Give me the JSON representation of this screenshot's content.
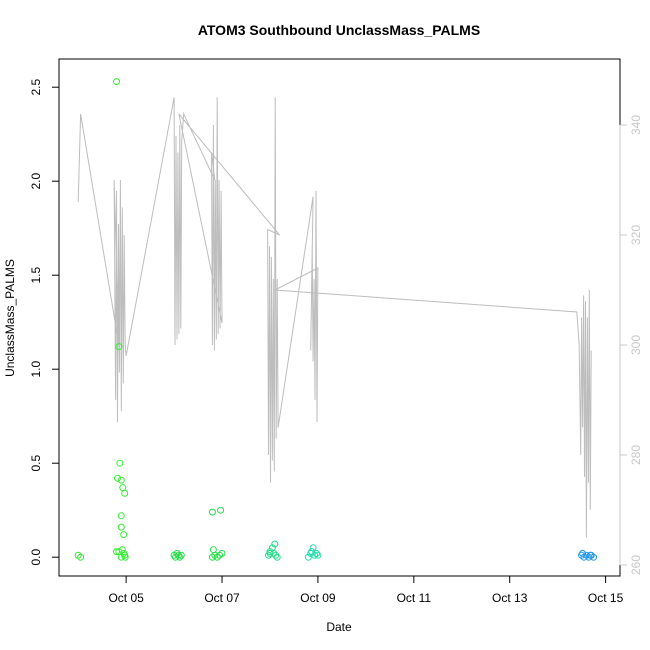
{
  "chart_data": {
    "type": "scatter",
    "title": "ATOM3 Southbound UnclassMass_PALMS",
    "xlabel": "Date",
    "ylabel": "UnclassMass_PALMS",
    "x_ticks": [
      "Oct 05",
      "Oct 07",
      "Oct 09",
      "Oct 11",
      "Oct 13",
      "Oct 15"
    ],
    "x_tick_dates": [
      5,
      7,
      9,
      11,
      13,
      15
    ],
    "xlim": [
      3.6,
      15.3
    ],
    "ylim": [
      -0.1,
      2.65
    ],
    "y_ticks": [
      0.0,
      0.5,
      1.0,
      1.5,
      2.0,
      2.5
    ],
    "y_tick_labels": [
      "0.0",
      "0.5",
      "1.0",
      "1.5",
      "2.0",
      "2.5"
    ],
    "y2lim": [
      258,
      352
    ],
    "y2_ticks": [
      260,
      280,
      300,
      320,
      340
    ],
    "y2_tick_labels": [
      "260",
      "280",
      "300",
      "320",
      "340"
    ],
    "grid": false,
    "points": [
      {
        "x": 4.0,
        "y": 0.01,
        "color": "#33e833"
      },
      {
        "x": 4.05,
        "y": 0.0,
        "color": "#33e833"
      },
      {
        "x": 4.8,
        "y": 2.53,
        "color": "#33ee33"
      },
      {
        "x": 4.85,
        "y": 1.12,
        "color": "#33ee33"
      },
      {
        "x": 4.87,
        "y": 0.5,
        "color": "#33ee33"
      },
      {
        "x": 4.82,
        "y": 0.42,
        "color": "#33ee33"
      },
      {
        "x": 4.9,
        "y": 0.41,
        "color": "#33ee33"
      },
      {
        "x": 4.93,
        "y": 0.37,
        "color": "#33ee33"
      },
      {
        "x": 4.97,
        "y": 0.34,
        "color": "#33ee33"
      },
      {
        "x": 4.9,
        "y": 0.22,
        "color": "#33ee33"
      },
      {
        "x": 4.9,
        "y": 0.16,
        "color": "#33ee33"
      },
      {
        "x": 4.95,
        "y": 0.12,
        "color": "#33ee33"
      },
      {
        "x": 4.8,
        "y": 0.03,
        "color": "#33ee33"
      },
      {
        "x": 4.85,
        "y": 0.03,
        "color": "#33ee33"
      },
      {
        "x": 4.92,
        "y": 0.04,
        "color": "#33ee33"
      },
      {
        "x": 4.95,
        "y": 0.02,
        "color": "#33ee33"
      },
      {
        "x": 4.97,
        "y": 0.01,
        "color": "#33ee33"
      },
      {
        "x": 4.98,
        "y": 0.0,
        "color": "#33ee33"
      },
      {
        "x": 4.9,
        "y": 0.0,
        "color": "#33ee33"
      },
      {
        "x": 6.0,
        "y": 0.01,
        "color": "#22dd44"
      },
      {
        "x": 6.03,
        "y": 0.0,
        "color": "#22dd44"
      },
      {
        "x": 6.06,
        "y": 0.02,
        "color": "#22dd44"
      },
      {
        "x": 6.09,
        "y": 0.01,
        "color": "#22dd44"
      },
      {
        "x": 6.12,
        "y": 0.0,
        "color": "#22dd44"
      },
      {
        "x": 6.15,
        "y": 0.01,
        "color": "#22dd44"
      },
      {
        "x": 6.8,
        "y": 0.24,
        "color": "#22e044"
      },
      {
        "x": 6.97,
        "y": 0.25,
        "color": "#22e044"
      },
      {
        "x": 6.82,
        "y": 0.04,
        "color": "#22e044"
      },
      {
        "x": 6.85,
        "y": 0.01,
        "color": "#22e044"
      },
      {
        "x": 6.9,
        "y": 0.0,
        "color": "#22e044"
      },
      {
        "x": 6.95,
        "y": 0.01,
        "color": "#22e044"
      },
      {
        "x": 7.0,
        "y": 0.02,
        "color": "#22e044"
      },
      {
        "x": 6.8,
        "y": 0.0,
        "color": "#22e044"
      },
      {
        "x": 8.0,
        "y": 0.03,
        "color": "#22dd88"
      },
      {
        "x": 8.05,
        "y": 0.05,
        "color": "#22dd88"
      },
      {
        "x": 8.08,
        "y": 0.02,
        "color": "#22dd88"
      },
      {
        "x": 8.1,
        "y": 0.07,
        "color": "#22dd88"
      },
      {
        "x": 8.12,
        "y": 0.01,
        "color": "#22dd88"
      },
      {
        "x": 8.15,
        "y": 0.0,
        "color": "#22dd88"
      },
      {
        "x": 7.97,
        "y": 0.01,
        "color": "#22dd88"
      },
      {
        "x": 8.0,
        "y": 0.02,
        "color": "#22dd88"
      },
      {
        "x": 8.85,
        "y": 0.02,
        "color": "#22ddaa"
      },
      {
        "x": 8.9,
        "y": 0.05,
        "color": "#22ddaa"
      },
      {
        "x": 8.93,
        "y": 0.01,
        "color": "#22ddaa"
      },
      {
        "x": 8.97,
        "y": 0.02,
        "color": "#22ddaa"
      },
      {
        "x": 8.8,
        "y": 0.0,
        "color": "#22ddaa"
      },
      {
        "x": 8.87,
        "y": 0.03,
        "color": "#22ddaa"
      },
      {
        "x": 9.0,
        "y": 0.01,
        "color": "#22ddaa"
      },
      {
        "x": 14.5,
        "y": 0.01,
        "color": "#2299ee"
      },
      {
        "x": 14.55,
        "y": 0.0,
        "color": "#2299ee"
      },
      {
        "x": 14.6,
        "y": 0.01,
        "color": "#2299ee"
      },
      {
        "x": 14.65,
        "y": 0.0,
        "color": "#2299ee"
      },
      {
        "x": 14.7,
        "y": 0.01,
        "color": "#2299ee"
      },
      {
        "x": 14.75,
        "y": 0.0,
        "color": "#2299ee"
      },
      {
        "x": 14.52,
        "y": 0.02,
        "color": "#2299ee"
      },
      {
        "x": 14.68,
        "y": 0.01,
        "color": "#2299ee"
      }
    ],
    "secondary_trace": {
      "color": "#bdbdbd",
      "x": [
        4.0,
        4.05,
        4.85,
        4.75,
        4.78,
        4.8,
        4.82,
        4.84,
        4.86,
        4.88,
        4.9,
        4.92,
        4.94,
        4.96,
        4.98,
        5.0,
        6.0,
        6.02,
        6.04,
        6.06,
        6.08,
        6.1,
        6.12,
        6.14,
        6.16,
        6.2,
        6.85,
        6.78,
        6.8,
        6.82,
        6.84,
        6.86,
        6.88,
        6.9,
        6.92,
        6.94,
        6.96,
        6.98,
        7.0,
        6.1,
        8.2,
        7.95,
        7.97,
        7.99,
        8.01,
        8.03,
        8.05,
        8.07,
        8.09,
        8.11,
        8.13,
        8.15,
        8.17,
        8.9,
        8.85,
        8.88,
        8.9,
        8.92,
        8.94,
        8.96,
        8.98,
        9.0,
        8.1,
        14.4,
        14.45,
        14.48,
        14.5,
        14.52,
        14.54,
        14.56,
        14.58,
        14.6,
        14.62,
        14.64,
        14.66,
        14.68,
        14.7
      ],
      "y": [
        326,
        342,
        300,
        330,
        290,
        328,
        286,
        322,
        295,
        330,
        288,
        325,
        293,
        320,
        300,
        298,
        345,
        300,
        338,
        301,
        335,
        302,
        340,
        303,
        337,
        342,
        330,
        335,
        300,
        340,
        299,
        330,
        301,
        345,
        302,
        330,
        303,
        328,
        304,
        342,
        320,
        321,
        280,
        318,
        275,
        316,
        279,
        312,
        277,
        345,
        283,
        312,
        285,
        327,
        299,
        318,
        297,
        312,
        290,
        328,
        286,
        314,
        310,
        306,
        300,
        280,
        305,
        285,
        309,
        276,
        308,
        265,
        305,
        275,
        310,
        270,
        299
      ]
    }
  }
}
